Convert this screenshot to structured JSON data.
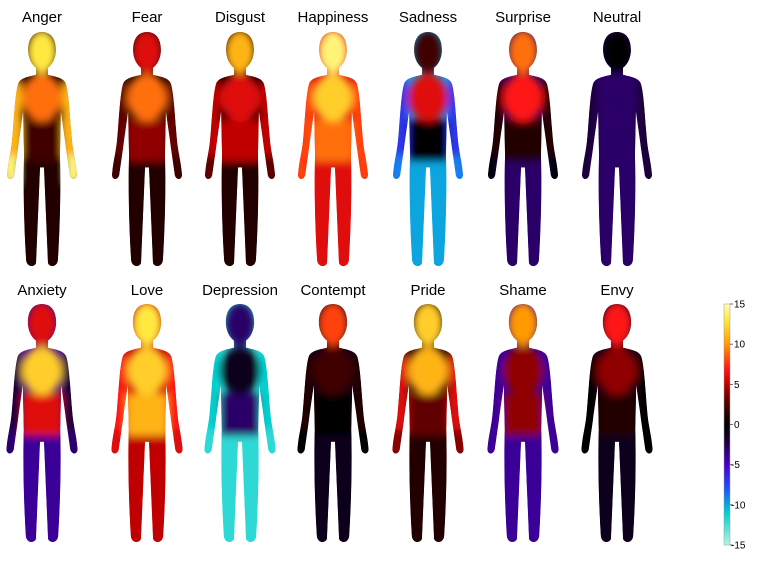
{
  "emotions": [
    {
      "label": "Anger",
      "head": 13,
      "chest": 9,
      "abdomen": 2,
      "arms": 11,
      "hands": 14,
      "legs": 1
    },
    {
      "label": "Fear",
      "head": 6,
      "chest": 9,
      "abdomen": 4,
      "arms": 3,
      "hands": 2,
      "legs": 1
    },
    {
      "label": "Disgust",
      "head": 11,
      "chest": 6,
      "abdomen": 5,
      "arms": 5,
      "hands": 3,
      "legs": 1
    },
    {
      "label": "Happiness",
      "head": 14,
      "chest": 12,
      "abdomen": 9,
      "arms": 8,
      "hands": 8,
      "legs": 6
    },
    {
      "label": "Sadness",
      "head": 2,
      "chest": 6,
      "abdomen": 0,
      "arms": -7,
      "hands": -9,
      "legs": -10
    },
    {
      "label": "Surprise",
      "head": 9,
      "chest": 7,
      "abdomen": 1,
      "arms": 1,
      "hands": 0,
      "legs": -3
    },
    {
      "label": "Neutral",
      "head": 0,
      "chest": -3,
      "abdomen": -3,
      "arms": -2,
      "hands": -2,
      "legs": -3
    },
    {
      "label": "Anxiety",
      "head": 6,
      "chest": 12,
      "abdomen": 6,
      "arms": -2,
      "hands": -3,
      "legs": -4
    },
    {
      "label": "Love",
      "head": 13,
      "chest": 12,
      "abdomen": 11,
      "arms": 7,
      "hands": 6,
      "legs": 5
    },
    {
      "label": "Depression",
      "head": -3,
      "chest": -1,
      "abdomen": -3,
      "arms": -11,
      "hands": -12,
      "legs": -12
    },
    {
      "label": "Contempt",
      "head": 8,
      "chest": 2,
      "abdomen": 0,
      "arms": 1,
      "hands": 0,
      "legs": -1
    },
    {
      "label": "Pride",
      "head": 12,
      "chest": 11,
      "abdomen": 3,
      "arms": 6,
      "hands": 4,
      "legs": 1
    },
    {
      "label": "Shame",
      "head": 10,
      "chest": 4,
      "abdomen": 4,
      "arms": -4,
      "hands": -4,
      "legs": -4
    },
    {
      "label": "Envy",
      "head": 7,
      "chest": 4,
      "abdomen": 1,
      "arms": 0,
      "hands": 0,
      "legs": -1
    }
  ],
  "colorbar": {
    "range": [
      -15,
      15
    ],
    "ticks": [
      "15",
      "10",
      "5",
      "0",
      "-5",
      "-10",
      "-15"
    ],
    "colormap": [
      [
        -15,
        "#b8f4e4"
      ],
      [
        -11,
        "#00d0d0"
      ],
      [
        -8,
        "#2050ff"
      ],
      [
        -5,
        "#4a00c8"
      ],
      [
        -2,
        "#1c0038"
      ],
      [
        0,
        "#000000"
      ],
      [
        3,
        "#600000"
      ],
      [
        5,
        "#c00000"
      ],
      [
        7,
        "#ff1818"
      ],
      [
        10,
        "#ff9a00"
      ],
      [
        13,
        "#ffe840"
      ],
      [
        15,
        "#ffffb0"
      ]
    ]
  }
}
